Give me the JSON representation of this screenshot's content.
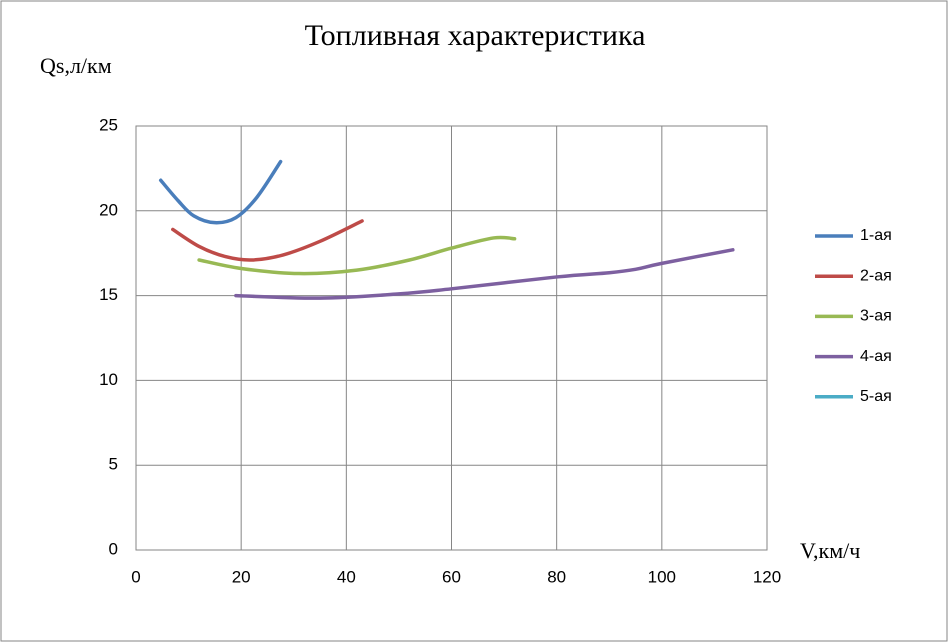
{
  "chart_data": {
    "type": "line",
    "title": "Топливная характеристика",
    "y_label": "Qs,л/км",
    "x_label": "V,км/ч",
    "xlim": [
      0,
      120
    ],
    "xticks": [
      0,
      20,
      40,
      60,
      80,
      100,
      120
    ],
    "ylim": [
      0,
      25
    ],
    "yticks": [
      0,
      5,
      10,
      15,
      20,
      25
    ],
    "grid": true,
    "legend": "right",
    "series": [
      {
        "name": "1-ая",
        "color": "#4a7ebb",
        "x": [
          4.7,
          8,
          11,
          15,
          19,
          23,
          27.5
        ],
        "values": [
          21.8,
          20.6,
          19.7,
          19.3,
          19.6,
          20.8,
          22.9
        ]
      },
      {
        "name": "2-ая",
        "color": "#be4b48",
        "x": [
          7,
          12,
          17,
          22,
          28,
          35,
          43
        ],
        "values": [
          18.9,
          17.9,
          17.3,
          17.1,
          17.4,
          18.2,
          19.4
        ]
      },
      {
        "name": "3-ая",
        "color": "#98b954",
        "x": [
          12,
          20,
          31,
          42,
          52,
          60,
          68,
          72
        ],
        "values": [
          17.1,
          16.6,
          16.3,
          16.5,
          17.1,
          17.8,
          18.4,
          18.35
        ]
      },
      {
        "name": "4-ая",
        "color": "#7d60a0",
        "x": [
          19,
          35,
          50,
          60,
          80,
          90,
          95,
          100,
          113.5
        ],
        "values": [
          15,
          14.85,
          15.1,
          15.4,
          16.1,
          16.35,
          16.55,
          16.9,
          17.7
        ]
      },
      {
        "name": "5-ая",
        "color": "#4bacc6",
        "x": [],
        "values": []
      }
    ]
  }
}
